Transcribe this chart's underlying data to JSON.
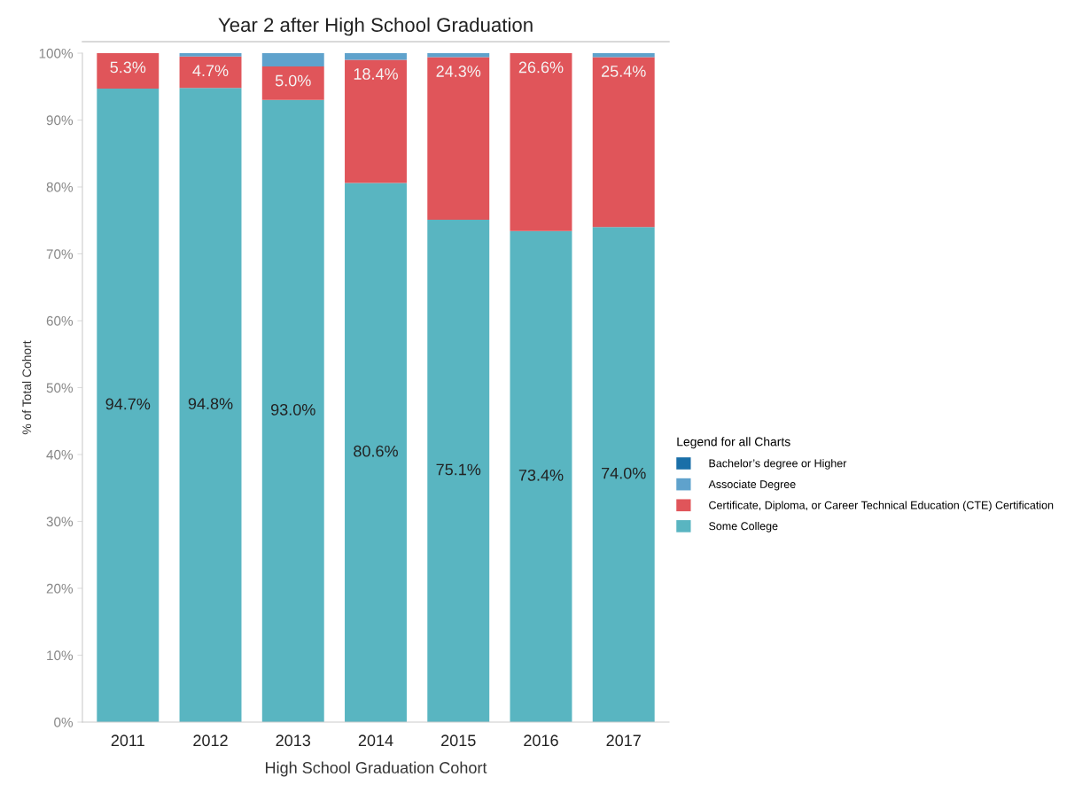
{
  "chart_data": {
    "type": "bar",
    "stacked": true,
    "title": "Year 2 after High School Graduation",
    "xlabel": "High School Graduation Cohort",
    "ylabel": "% of Total Cohort",
    "categories": [
      "2011",
      "2012",
      "2013",
      "2014",
      "2015",
      "2016",
      "2017"
    ],
    "series": [
      {
        "name": "Some College",
        "color": "#59b5c1",
        "values": [
          94.7,
          94.8,
          93.0,
          80.6,
          75.1,
          73.4,
          74.0
        ],
        "value_labels": [
          "94.7%",
          "94.8%",
          "93.0%",
          "80.6%",
          "75.1%",
          "73.4%",
          "74.0%"
        ]
      },
      {
        "name": "Certificate, Diploma, or Career Technical Education (CTE) Certification",
        "color": "#e0555a",
        "values": [
          5.3,
          4.7,
          5.0,
          18.4,
          24.3,
          26.6,
          25.4
        ],
        "value_labels": [
          "5.3%",
          "4.7%",
          "5.0%",
          "18.4%",
          "24.3%",
          "26.6%",
          "25.4%"
        ]
      },
      {
        "name": "Associate Degree",
        "color": "#5fa2cc",
        "values": [
          0,
          0.5,
          2.0,
          1.0,
          0.6,
          0,
          0.6
        ]
      },
      {
        "name": "Bachelor’s degree or Higher",
        "color": "#1a6fa8",
        "values": [
          0,
          0,
          0,
          0,
          0,
          0,
          0
        ]
      }
    ],
    "ylim": [
      0,
      100
    ],
    "yticks": [
      {
        "value": 0,
        "label": "0%"
      },
      {
        "value": 10,
        "label": "10%"
      },
      {
        "value": 20,
        "label": "20%"
      },
      {
        "value": 30,
        "label": "30%"
      },
      {
        "value": 40,
        "label": "40%"
      },
      {
        "value": 50,
        "label": "50%"
      },
      {
        "value": 60,
        "label": "60%"
      },
      {
        "value": 70,
        "label": "70%"
      },
      {
        "value": 80,
        "label": "80%"
      },
      {
        "value": 90,
        "label": "90%"
      },
      {
        "value": 100,
        "label": "100%"
      }
    ],
    "legend": "right",
    "legend_title": "Legend for all Charts",
    "grid": false
  }
}
